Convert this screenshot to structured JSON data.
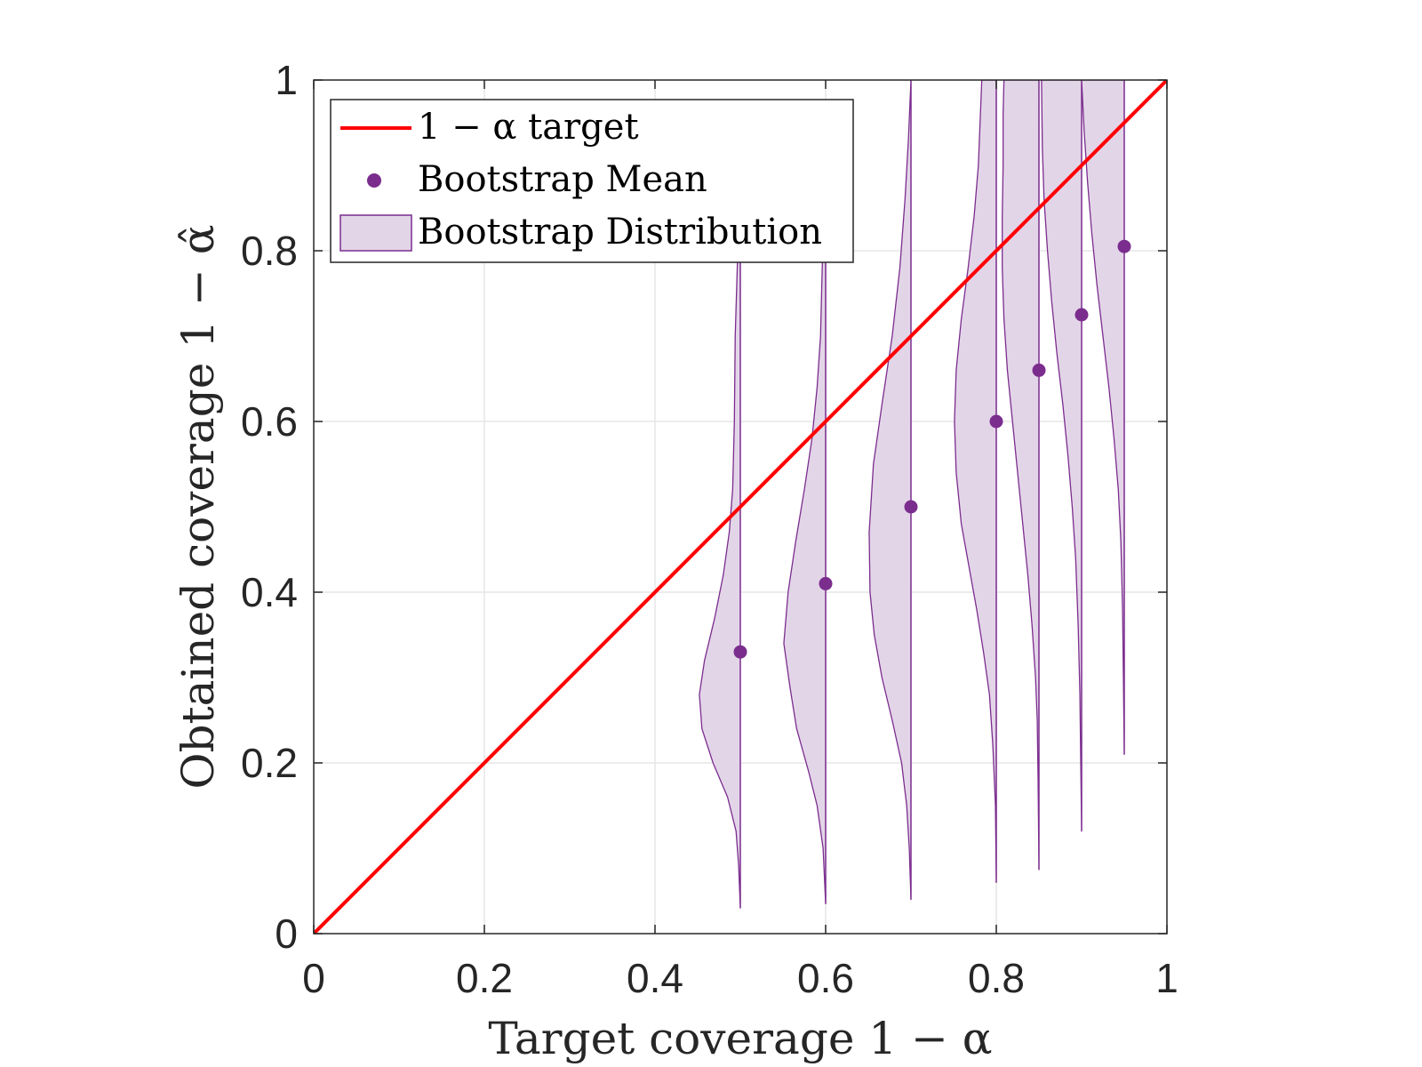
{
  "chart_data": {
    "type": "violin",
    "title": "",
    "xlabel": "Target coverage 1 − α",
    "ylabel": "Obtained coverage 1 − α̂",
    "xlim": [
      0,
      1
    ],
    "ylim": [
      0,
      1
    ],
    "xticks": [
      0,
      0.2,
      0.4,
      0.6,
      0.8,
      1
    ],
    "yticks": [
      0,
      0.2,
      0.4,
      0.6,
      0.8,
      1
    ],
    "xtick_labels": [
      "0",
      "0.2",
      "0.4",
      "0.6",
      "0.8",
      "1"
    ],
    "ytick_labels": [
      "0",
      "0.2",
      "0.4",
      "0.6",
      "0.8",
      "1"
    ],
    "grid": true,
    "legend": {
      "location": "top-left",
      "entries": [
        "1 − α target",
        "Bootstrap Mean",
        "Bootstrap Distribution"
      ]
    },
    "target_line": {
      "name": "1 − α target",
      "x": [
        0,
        1
      ],
      "y": [
        0,
        1
      ],
      "color": "#ff0000"
    },
    "bootstrap_mean": {
      "name": "Bootstrap Mean",
      "x": [
        0.5,
        0.6,
        0.7,
        0.8,
        0.85,
        0.9,
        0.95
      ],
      "y": [
        0.33,
        0.41,
        0.5,
        0.6,
        0.66,
        0.725,
        0.805
      ],
      "color": "#7b2d8e"
    },
    "bootstrap_distribution": {
      "name": "Bootstrap Distribution",
      "fill_color": "#e3d5e8",
      "edge_color": "#7b2d8e",
      "violins": [
        {
          "x": 0.5,
          "profile": [
            [
              0.03,
              0.0
            ],
            [
              0.08,
              0.002
            ],
            [
              0.12,
              0.005
            ],
            [
              0.16,
              0.015
            ],
            [
              0.2,
              0.032
            ],
            [
              0.24,
              0.045
            ],
            [
              0.28,
              0.048
            ],
            [
              0.32,
              0.042
            ],
            [
              0.37,
              0.03
            ],
            [
              0.42,
              0.02
            ],
            [
              0.47,
              0.013
            ],
            [
              0.52,
              0.009
            ],
            [
              0.6,
              0.007
            ],
            [
              0.7,
              0.006
            ],
            [
              0.8,
              0.003
            ],
            [
              0.85,
              0.0
            ]
          ]
        },
        {
          "x": 0.6,
          "profile": [
            [
              0.035,
              0.0
            ],
            [
              0.1,
              0.003
            ],
            [
              0.15,
              0.01
            ],
            [
              0.19,
              0.02
            ],
            [
              0.24,
              0.034
            ],
            [
              0.29,
              0.042
            ],
            [
              0.34,
              0.049
            ],
            [
              0.4,
              0.044
            ],
            [
              0.46,
              0.035
            ],
            [
              0.52,
              0.025
            ],
            [
              0.58,
              0.016
            ],
            [
              0.64,
              0.01
            ],
            [
              0.7,
              0.006
            ],
            [
              0.78,
              0.004
            ],
            [
              0.85,
              0.002
            ],
            [
              0.9,
              0.0
            ]
          ]
        },
        {
          "x": 0.7,
          "profile": [
            [
              0.04,
              0.0
            ],
            [
              0.1,
              0.002
            ],
            [
              0.15,
              0.005
            ],
            [
              0.2,
              0.011
            ],
            [
              0.25,
              0.022
            ],
            [
              0.3,
              0.034
            ],
            [
              0.35,
              0.043
            ],
            [
              0.4,
              0.048
            ],
            [
              0.47,
              0.049
            ],
            [
              0.55,
              0.044
            ],
            [
              0.62,
              0.034
            ],
            [
              0.7,
              0.022
            ],
            [
              0.78,
              0.013
            ],
            [
              0.86,
              0.007
            ],
            [
              0.93,
              0.003
            ],
            [
              1.0,
              0.0
            ]
          ]
        },
        {
          "x": 0.8,
          "profile": [
            [
              0.06,
              0.0
            ],
            [
              0.15,
              0.001
            ],
            [
              0.22,
              0.004
            ],
            [
              0.28,
              0.008
            ],
            [
              0.33,
              0.015
            ],
            [
              0.38,
              0.023
            ],
            [
              0.43,
              0.032
            ],
            [
              0.48,
              0.041
            ],
            [
              0.54,
              0.047
            ],
            [
              0.6,
              0.049
            ],
            [
              0.66,
              0.047
            ],
            [
              0.72,
              0.041
            ],
            [
              0.78,
              0.033
            ],
            [
              0.84,
              0.026
            ],
            [
              0.9,
              0.021
            ],
            [
              1.0,
              0.017
            ]
          ]
        },
        {
          "x": 0.85,
          "profile": [
            [
              0.075,
              0.0
            ],
            [
              0.18,
              0.001
            ],
            [
              0.25,
              0.002
            ],
            [
              0.3,
              0.004
            ],
            [
              0.36,
              0.008
            ],
            [
              0.42,
              0.013
            ],
            [
              0.48,
              0.019
            ],
            [
              0.54,
              0.025
            ],
            [
              0.6,
              0.031
            ],
            [
              0.66,
              0.037
            ],
            [
              0.72,
              0.041
            ],
            [
              0.78,
              0.043
            ],
            [
              0.84,
              0.043
            ],
            [
              0.9,
              0.042
            ],
            [
              0.96,
              0.042
            ],
            [
              1.0,
              0.041
            ]
          ]
        },
        {
          "x": 0.9,
          "profile": [
            [
              0.12,
              0.0
            ],
            [
              0.2,
              0.001
            ],
            [
              0.28,
              0.002
            ],
            [
              0.36,
              0.004
            ],
            [
              0.44,
              0.007
            ],
            [
              0.5,
              0.011
            ],
            [
              0.56,
              0.016
            ],
            [
              0.62,
              0.022
            ],
            [
              0.68,
              0.029
            ],
            [
              0.74,
              0.035
            ],
            [
              0.8,
              0.04
            ],
            [
              0.86,
              0.044
            ],
            [
              0.92,
              0.046
            ],
            [
              1.0,
              0.047
            ]
          ]
        },
        {
          "x": 0.95,
          "profile": [
            [
              0.21,
              0.0
            ],
            [
              0.3,
              0.001
            ],
            [
              0.38,
              0.002
            ],
            [
              0.46,
              0.004
            ],
            [
              0.52,
              0.007
            ],
            [
              0.58,
              0.012
            ],
            [
              0.64,
              0.018
            ],
            [
              0.7,
              0.025
            ],
            [
              0.76,
              0.032
            ],
            [
              0.82,
              0.038
            ],
            [
              0.88,
              0.043
            ],
            [
              0.94,
              0.047
            ],
            [
              1.0,
              0.05
            ]
          ]
        }
      ]
    }
  }
}
